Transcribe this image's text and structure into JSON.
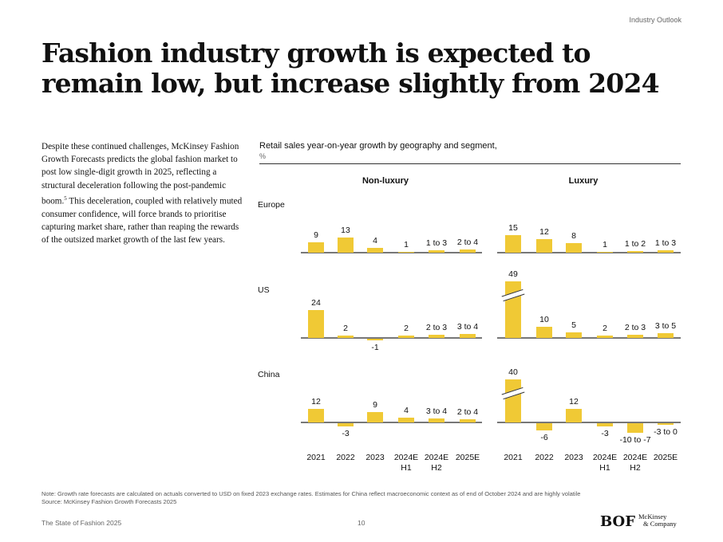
{
  "header": {
    "kicker": "Industry Outlook",
    "title": "Fashion industry growth is expected to remain low, but increase slightly from 2024"
  },
  "body_text": "Despite these continued challenges, McKinsey Fashion Growth Forecasts predicts the global fashion market to post low single-digit growth in 2025, reflecting a structural deceleration following the post-pandemic boom.",
  "body_footnote_ref": "5",
  "body_text_2": " This deceleration, coupled with relatively muted consumer confidence, will force brands to prioritise capturing market share, rather than reaping the rewards of the outsized market growth of the last few years.",
  "chart_data": {
    "type": "bar",
    "title": "Retail sales year-on-year growth by geography and segment,",
    "unit": "%",
    "segments": [
      "Non-luxury",
      "Luxury"
    ],
    "rows": [
      "Europe",
      "US",
      "China"
    ],
    "categories": [
      "2021",
      "2022",
      "2023",
      "2024E H1",
      "2024E H2",
      "2025E"
    ],
    "category_lines": [
      [
        "2021",
        ""
      ],
      [
        "2022",
        ""
      ],
      [
        "2023",
        ""
      ],
      [
        "2024E",
        "H1"
      ],
      [
        "2024E",
        "H2"
      ],
      [
        "2025E",
        ""
      ]
    ],
    "series": [
      {
        "row": "Europe",
        "segment": "Non-luxury",
        "values": [
          9,
          13,
          4,
          1,
          2,
          3
        ],
        "labels": [
          "9",
          "13",
          "4",
          "1",
          "1 to 3",
          "2 to 4"
        ]
      },
      {
        "row": "Europe",
        "segment": "Luxury",
        "values": [
          15,
          12,
          8,
          1,
          1.5,
          2
        ],
        "labels": [
          "15",
          "12",
          "8",
          "1",
          "1 to 2",
          "1 to 3"
        ]
      },
      {
        "row": "US",
        "segment": "Non-luxury",
        "values": [
          24,
          2,
          -1,
          2,
          2.5,
          3.5
        ],
        "labels": [
          "24",
          "2",
          "-1",
          "2",
          "2 to 3",
          "3 to 4"
        ]
      },
      {
        "row": "US",
        "segment": "Luxury",
        "values": [
          49,
          10,
          5,
          2,
          2.5,
          4
        ],
        "labels": [
          "49",
          "10",
          "5",
          "2",
          "2 to 3",
          "3 to 5"
        ],
        "broken": [
          0
        ]
      },
      {
        "row": "China",
        "segment": "Non-luxury",
        "values": [
          12,
          -3,
          9,
          4,
          3.5,
          3
        ],
        "labels": [
          "12",
          "-3",
          "9",
          "4",
          "3 to 4",
          "2 to 4"
        ]
      },
      {
        "row": "China",
        "segment": "Luxury",
        "values": [
          40,
          -6,
          12,
          -3,
          -8.5,
          -1.5
        ],
        "labels": [
          "40",
          "-6",
          "12",
          "-3",
          "-10 to -7",
          "-3 to 0"
        ],
        "broken": [
          0
        ]
      }
    ],
    "bar_color": "#f0c935"
  },
  "footer": {
    "note": "Note: Growth rate forecasts are calculated on actuals converted to USD on fixed 2023 exchange rates. Estimates for China reflect macroeconomic context as of end of October 2024 and are highly volatile",
    "source": "Source: McKinsey Fashion Growth Forecasts 2025",
    "publication": "The State of Fashion 2025",
    "page": "10",
    "logo_bof": "BOF",
    "logo_mck_1": "McKinsey",
    "logo_mck_2": "& Company"
  }
}
